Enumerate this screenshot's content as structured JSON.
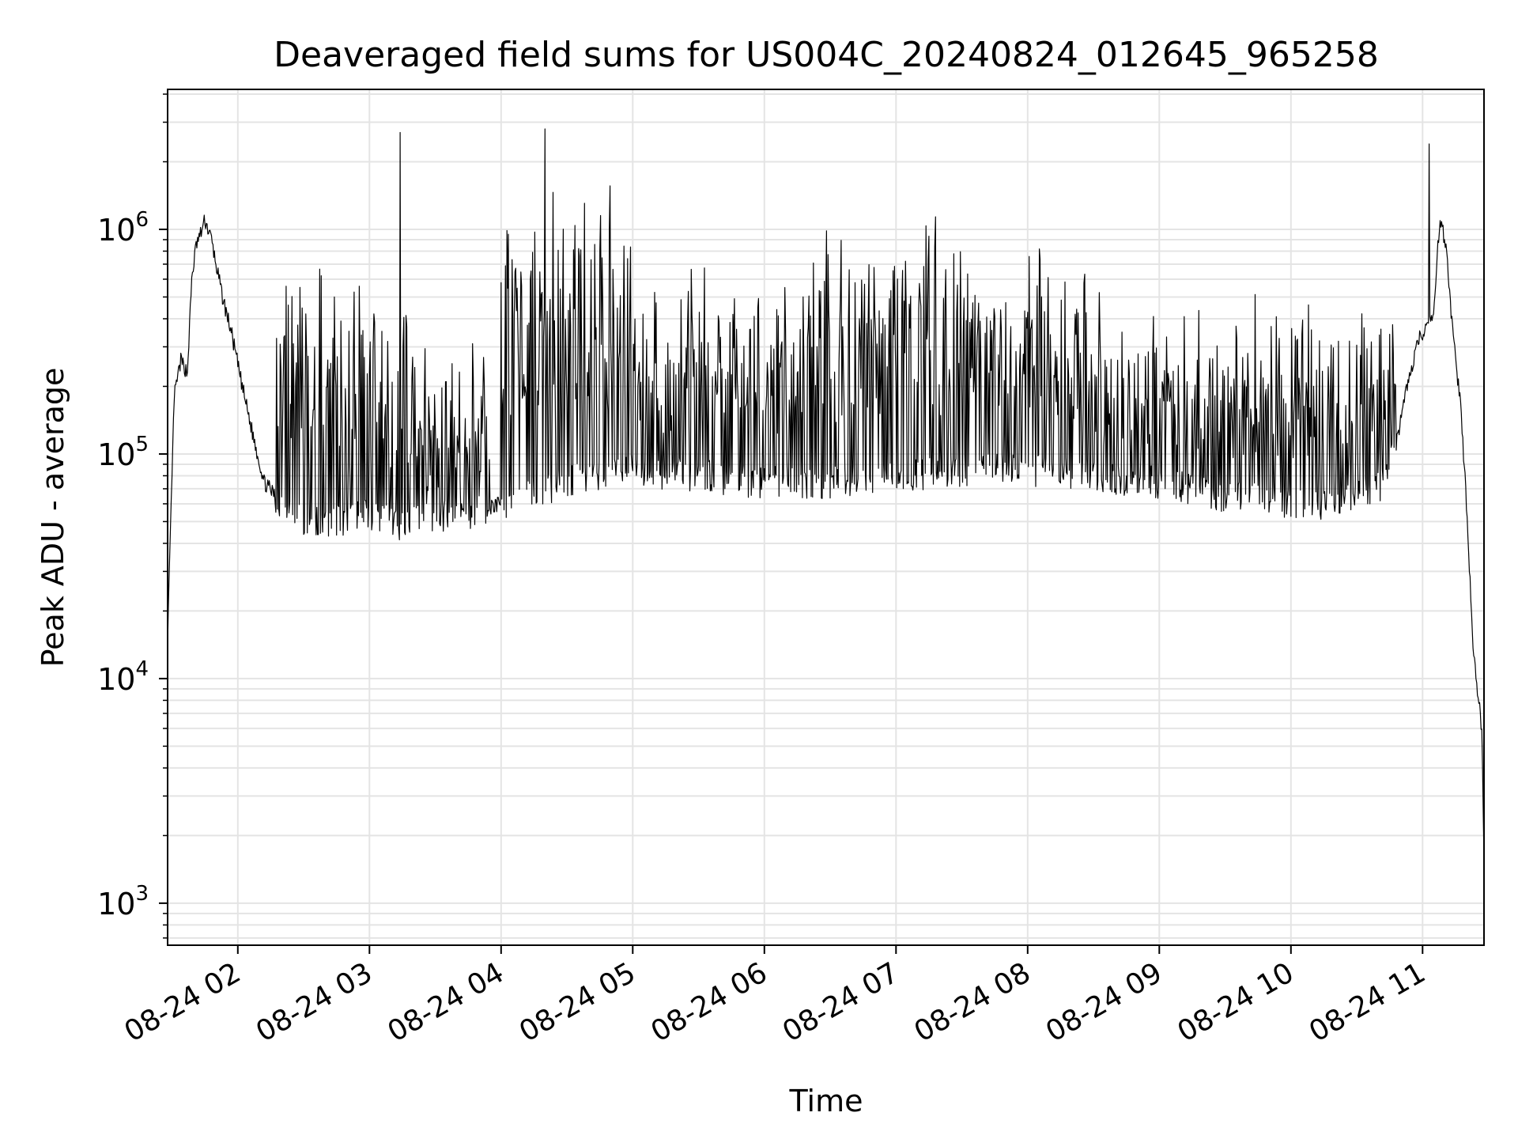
{
  "chart_data": {
    "type": "line",
    "title": "Deaveraged field sums for US004C_20240824_012645_965258",
    "xlabel": "Time",
    "ylabel": "Peak ADU - average",
    "yscale": "log",
    "ylim": [
      650,
      4200000
    ],
    "xlim": [
      "2024-08-24 01:28",
      "2024-08-24 11:28"
    ],
    "grid": true,
    "line_color": "#000000",
    "x_ticks": [
      {
        "t": "2024-08-24 02:00",
        "label": "08-24 02"
      },
      {
        "t": "2024-08-24 03:00",
        "label": "08-24 03"
      },
      {
        "t": "2024-08-24 04:00",
        "label": "08-24 04"
      },
      {
        "t": "2024-08-24 05:00",
        "label": "08-24 05"
      },
      {
        "t": "2024-08-24 06:00",
        "label": "08-24 06"
      },
      {
        "t": "2024-08-24 07:00",
        "label": "08-24 07"
      },
      {
        "t": "2024-08-24 08:00",
        "label": "08-24 08"
      },
      {
        "t": "2024-08-24 09:00",
        "label": "08-24 09"
      },
      {
        "t": "2024-08-24 10:00",
        "label": "08-24 10"
      },
      {
        "t": "2024-08-24 11:00",
        "label": "08-24 11"
      }
    ],
    "y_ticks": [
      {
        "value": 1000,
        "base": "10",
        "exp": "3"
      },
      {
        "value": 10000,
        "base": "10",
        "exp": "4"
      },
      {
        "value": 100000,
        "base": "10",
        "exp": "5"
      },
      {
        "value": 1000000,
        "base": "10",
        "exp": "6"
      }
    ],
    "series": [
      {
        "baseline": {
          "x": [
            "2024-08-24 01:28",
            "2024-08-24 01:31",
            "2024-08-24 01:34",
            "2024-08-24 01:37",
            "2024-08-24 01:39",
            "2024-08-24 01:41",
            "2024-08-24 01:43",
            "2024-08-24 01:45",
            "2024-08-24 01:48",
            "2024-08-24 01:50",
            "2024-08-24 01:53",
            "2024-08-24 01:57",
            "2024-08-24 02:02",
            "2024-08-24 02:07",
            "2024-08-24 02:12",
            "2024-08-24 02:20",
            "2024-08-24 02:30",
            "2024-08-24 02:45",
            "2024-08-24 03:00",
            "2024-08-24 03:15",
            "2024-08-24 03:30",
            "2024-08-24 03:45",
            "2024-08-24 04:00",
            "2024-08-24 04:30",
            "2024-08-24 05:00",
            "2024-08-24 05:30",
            "2024-08-24 06:00",
            "2024-08-24 06:30",
            "2024-08-24 07:00",
            "2024-08-24 07:30",
            "2024-08-24 08:00",
            "2024-08-24 08:30",
            "2024-08-24 09:00",
            "2024-08-24 09:30",
            "2024-08-24 10:00",
            "2024-08-24 10:20",
            "2024-08-24 10:30",
            "2024-08-24 10:40",
            "2024-08-24 10:48",
            "2024-08-24 10:53",
            "2024-08-24 10:58",
            "2024-08-24 11:01",
            "2024-08-24 11:03",
            "2024-08-24 11:05",
            "2024-08-24 11:08",
            "2024-08-24 11:11",
            "2024-08-24 11:14",
            "2024-08-24 11:17",
            "2024-08-24 11:20",
            "2024-08-24 11:23",
            "2024-08-24 11:25",
            "2024-08-24 11:27",
            "2024-08-24 11:28"
          ],
          "y": [
            15000,
            180000,
            260000,
            230000,
            600000,
            850000,
            950000,
            1100000,
            900000,
            700000,
            500000,
            350000,
            200000,
            120000,
            75000,
            60000,
            52000,
            50000,
            55000,
            48000,
            52000,
            55000,
            60000,
            75000,
            85000,
            80000,
            75000,
            75000,
            80000,
            85000,
            85000,
            80000,
            75000,
            65000,
            60000,
            60000,
            65000,
            70000,
            110000,
            200000,
            320000,
            350000,
            380000,
            450000,
            1150000,
            800000,
            320000,
            180000,
            60000,
            14000,
            9000,
            6000,
            1500
          ]
        },
        "spikes": [
          {
            "t": "2024-08-24 03:14",
            "y": 2700000
          },
          {
            "t": "2024-08-24 04:20",
            "y": 2800000
          },
          {
            "t": "2024-08-24 11:03",
            "y": 2400000
          }
        ]
      }
    ]
  }
}
